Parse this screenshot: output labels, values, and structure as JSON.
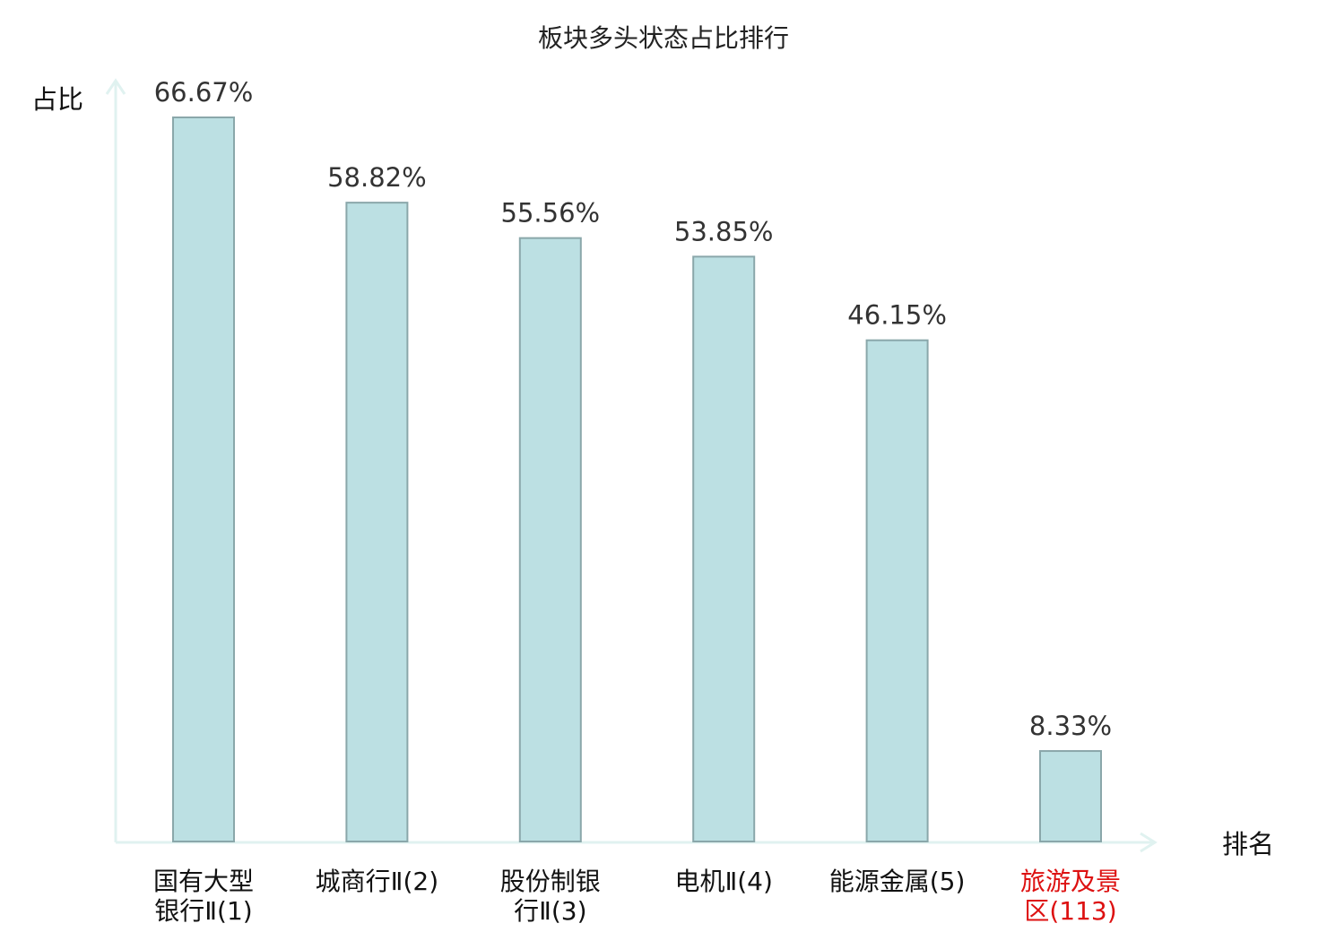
{
  "chart_data": {
    "type": "bar",
    "title": "板块多头状态占比排行",
    "xlabel": "排名",
    "ylabel": "占比",
    "ylim": [
      0,
      70
    ],
    "grid": false,
    "legend": "none",
    "categories": [
      [
        "国有大型",
        "银行Ⅱ(1)"
      ],
      [
        "城商行Ⅱ(2)"
      ],
      [
        "股份制银",
        "行Ⅱ(3)"
      ],
      [
        "电机Ⅱ(4)"
      ],
      [
        "能源金属(5)"
      ],
      [
        "旅游及景",
        "区(113)"
      ]
    ],
    "values": [
      66.67,
      58.82,
      55.56,
      53.85,
      46.15,
      8.33
    ],
    "value_labels": [
      "66.67%",
      "58.82%",
      "55.56%",
      "53.85%",
      "46.15%",
      "8.33%"
    ],
    "highlight_index": 5,
    "colors": {
      "bar_fill": "#bce0e3",
      "bar_stroke": "#8aa7aa",
      "axis": "#e0f2f0",
      "highlight_text": "#dd1111"
    }
  }
}
